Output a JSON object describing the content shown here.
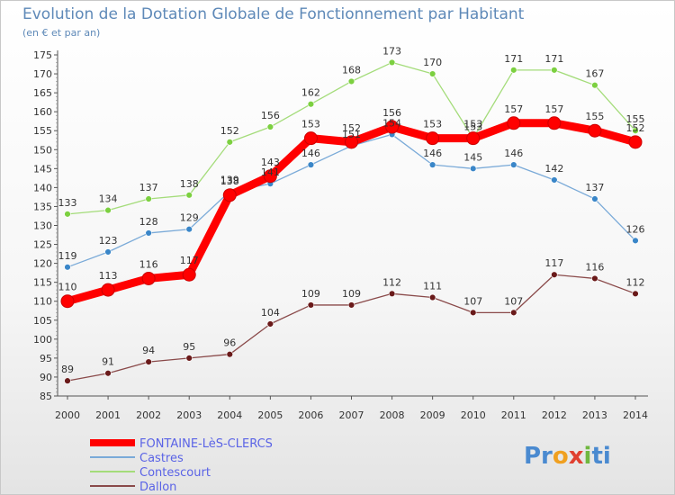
{
  "chart_data": {
    "type": "line",
    "title": "Evolution de la Dotation Globale de Fonctionnement par Habitant",
    "subtitle": "(en € et par an)",
    "categories": [
      "2000",
      "2001",
      "2002",
      "2003",
      "2004",
      "2005",
      "2006",
      "2007",
      "2008",
      "2009",
      "2010",
      "2011",
      "2012",
      "2013",
      "2014"
    ],
    "ylim": [
      85,
      175
    ],
    "yticks": [
      85,
      90,
      95,
      100,
      105,
      110,
      115,
      120,
      125,
      130,
      135,
      140,
      145,
      150,
      155,
      160,
      165,
      170,
      175
    ],
    "grid": false,
    "legend_position": "bottom-left",
    "series": [
      {
        "name": "FONTAINE-LèS-CLERCS",
        "color": "#ff0000",
        "marker_color": "#ff0000",
        "text_color": "#5a63e6",
        "thick": true,
        "values": [
          110,
          113,
          116,
          117,
          138,
          143,
          153,
          152,
          156,
          153,
          153,
          157,
          157,
          155,
          152
        ]
      },
      {
        "name": "Castres",
        "color": "#7aaad8",
        "marker_color": "#3a86c8",
        "text_color": "#5a63e6",
        "thick": false,
        "values": [
          119,
          123,
          128,
          129,
          139,
          141,
          146,
          151,
          154,
          146,
          145,
          146,
          142,
          137,
          126
        ]
      },
      {
        "name": "Contescourt",
        "color": "#a4dc7a",
        "marker_color": "#7cd040",
        "text_color": "#5a63e6",
        "thick": false,
        "values": [
          133,
          134,
          137,
          138,
          152,
          156,
          162,
          168,
          173,
          170,
          153,
          171,
          171,
          167,
          155
        ]
      },
      {
        "name": "Dallon",
        "color": "#8a4a4a",
        "marker_color": "#6a1a1a",
        "text_color": "#5a63e6",
        "thick": false,
        "values": [
          89,
          91,
          94,
          95,
          96,
          104,
          109,
          109,
          112,
          111,
          107,
          107,
          117,
          116,
          112
        ]
      }
    ]
  },
  "branding": {
    "logo_parts": [
      "Pr",
      "o",
      "x",
      "i",
      "ti"
    ],
    "logo_colors": [
      "#4a8ad0",
      "#f0a020",
      "#e04030",
      "#70b840",
      "#4a8ad0"
    ]
  }
}
